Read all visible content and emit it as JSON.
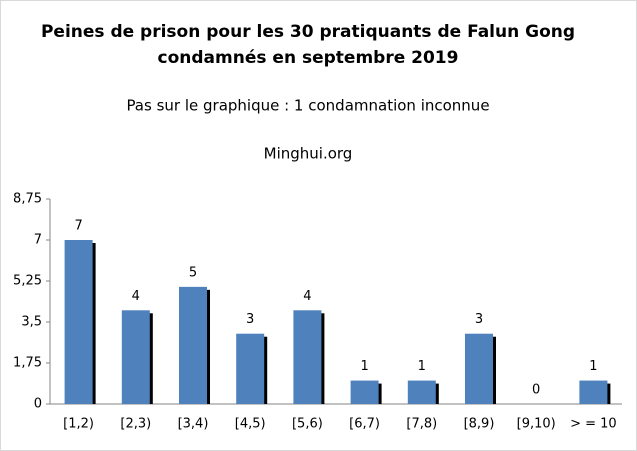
{
  "chart_data": {
    "type": "bar",
    "title": [
      "Peines de prison pour les 30 pratiquants de Falun Gong",
      "condamnés en septembre 2019"
    ],
    "subtitle": "Pas sur le graphique : 1 condamnation inconnue",
    "annotation": "Minghui.org",
    "categories": [
      "[1,2)",
      "[2,3)",
      "[3,4)",
      "[4,5)",
      "[5,6)",
      "[6,7)",
      "[7,8)",
      "[8,9)",
      "[9,10)",
      "> = 10"
    ],
    "values": [
      7,
      4,
      5,
      3,
      4,
      1,
      1,
      3,
      0,
      1
    ],
    "color": "#4f81bd",
    "ylim": [
      0,
      8.75
    ],
    "yticks": [
      0,
      {
        "value": 1.75,
        "label": "1,75"
      },
      {
        "value": 3.5,
        "label": "3,5"
      },
      {
        "value": 5.25,
        "label": "5,25"
      },
      7,
      {
        "value": 8.75,
        "label": "8,75"
      }
    ],
    "grid": false
  }
}
